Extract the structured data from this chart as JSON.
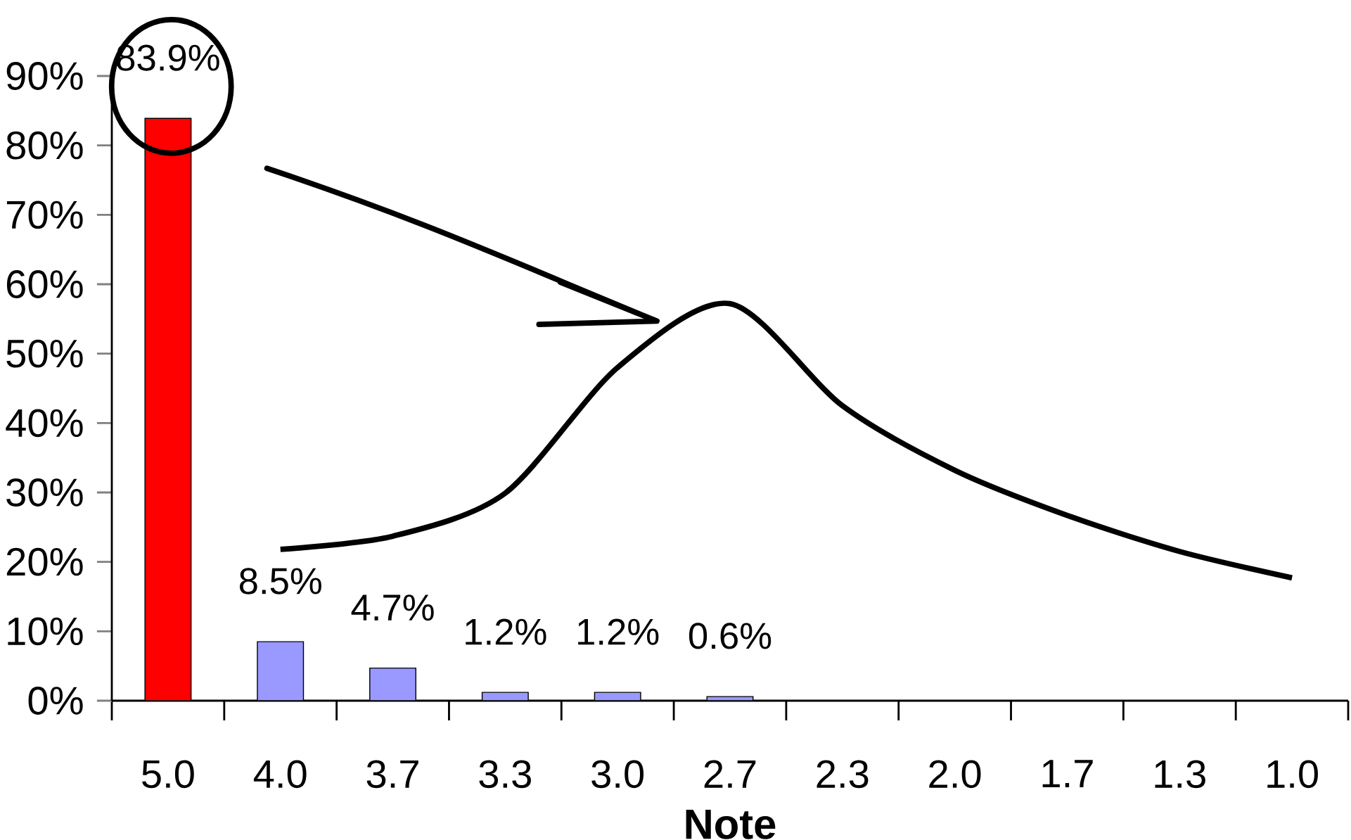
{
  "chart_data": {
    "type": "bar",
    "xlabel": "**Note**",
    "categories": [
      "5.0",
      "4.0",
      "3.7",
      "3.3",
      "3.0",
      "2.7",
      "2.3",
      "2.0",
      "1.7",
      "1.3",
      "1.0"
    ],
    "series": [
      {
        "values": [
          83.9,
          8.5,
          4.7,
          1.2,
          1.2,
          0.6,
          0,
          0,
          0,
          0,
          0
        ],
        "colors": [
          "#ff0000",
          "#9999ff",
          "#9999ff",
          "#9999ff",
          "#9999ff",
          "#9999ff",
          "#9999ff",
          "#9999ff",
          "#9999ff",
          "#9999ff",
          "#9999ff"
        ],
        "value_labels": [
          "83.9%",
          "8.5%",
          "4.7%",
          "1.2%",
          "1.2%",
          "0.6%",
          null,
          null,
          null,
          null,
          null
        ]
      },
      {
        "type": "line",
        "color": "#000000",
        "values": [
          null,
          21.8,
          23.7,
          29.9,
          48,
          57.2,
          42.5,
          33.2,
          26.7,
          21.5,
          17.7
        ]
      }
    ],
    "ylim": [
      0,
      90
    ],
    "yticks": [
      {
        "value": 0,
        "label": "0%"
      },
      {
        "value": 10,
        "label": "10%"
      },
      {
        "value": 20,
        "label": "20%"
      },
      {
        "value": 30,
        "label": "30%"
      },
      {
        "value": 40,
        "label": "40%"
      },
      {
        "value": 50,
        "label": "50%"
      },
      {
        "value": 60,
        "label": "60%"
      },
      {
        "value": 70,
        "label": "70%"
      },
      {
        "value": 80,
        "label": "80%"
      },
      {
        "value": 90,
        "label": "90%"
      }
    ]
  }
}
